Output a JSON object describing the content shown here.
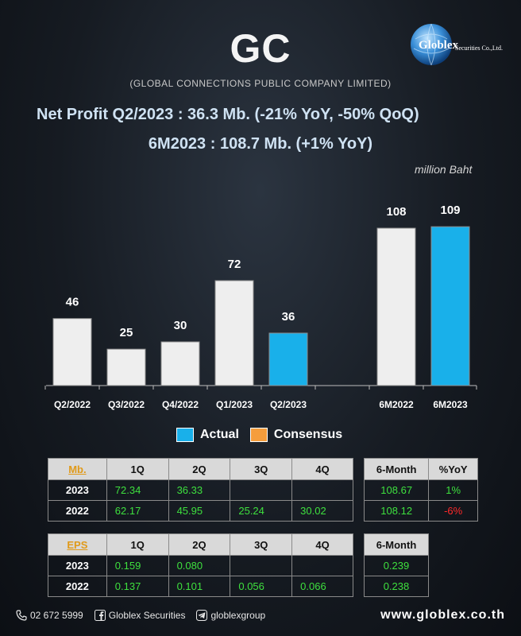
{
  "header": {
    "ticker": "GC",
    "company": "(GLOBAL CONNECTIONS PUBLIC COMPANY LIMITED)",
    "logo_text": "Globlex",
    "logo_sub": "Securities Co.,Ltd.",
    "headline1": "Net Profit  Q2/2023 : 36.3 Mb. (-21% YoY, -50% QoQ)",
    "headline2": "6M2023 : 108.7 Mb. (+1% YoY)",
    "unit": "million Baht"
  },
  "colors": {
    "actual": "#19b0ea",
    "consensus": "#f59d3c",
    "bar_default": "#eeeeee",
    "positive": "#3ee03e",
    "negative": "#ff2a2a"
  },
  "chart_data": {
    "type": "bar",
    "categories": [
      "Q2/2022",
      "Q3/2022",
      "Q4/2022",
      "Q1/2023",
      "Q2/2023",
      "",
      "6M2022",
      "6M2023"
    ],
    "values": [
      46,
      25,
      30,
      72,
      36,
      null,
      108,
      109
    ],
    "labels": [
      "46",
      "25",
      "30",
      "72",
      "36",
      "",
      "108",
      "109"
    ],
    "highlight": [
      false,
      false,
      false,
      false,
      true,
      false,
      false,
      true
    ],
    "ylim": [
      0,
      120
    ],
    "legend": [
      {
        "label": "Actual",
        "color": "#19b0ea"
      },
      {
        "label": "Consensus",
        "color": "#f59d3c"
      }
    ]
  },
  "table_mb": {
    "corner": "Mb.",
    "headers": [
      "1Q",
      "2Q",
      "3Q",
      "4Q"
    ],
    "rows": [
      {
        "year": "2023",
        "values": [
          "72.34",
          "36.33",
          "",
          ""
        ]
      },
      {
        "year": "2022",
        "values": [
          "62.17",
          "45.95",
          "25.24",
          "30.02"
        ]
      }
    ]
  },
  "table_mb_6m": {
    "headers": [
      "6-Month",
      "%YoY"
    ],
    "rows": [
      {
        "values": [
          "108.67",
          "1%"
        ],
        "yoy_sign": "pos"
      },
      {
        "values": [
          "108.12",
          "-6%"
        ],
        "yoy_sign": "neg"
      }
    ]
  },
  "table_eps": {
    "corner": "EPS",
    "headers": [
      "1Q",
      "2Q",
      "3Q",
      "4Q"
    ],
    "rows": [
      {
        "year": "2023",
        "values": [
          "0.159",
          "0.080",
          "",
          ""
        ]
      },
      {
        "year": "2022",
        "values": [
          "0.137",
          "0.101",
          "0.056",
          "0.066"
        ]
      }
    ]
  },
  "table_eps_6m": {
    "headers": [
      "6-Month"
    ],
    "rows": [
      {
        "values": [
          "0.239"
        ]
      },
      {
        "values": [
          "0.238"
        ]
      }
    ]
  },
  "footer": {
    "phone": "02 672 5999",
    "facebook": "Globlex Securities",
    "telegram": "globlexgroup",
    "website": "www.globlex.co.th",
    "icons": [
      "phone-icon",
      "facebook-icon",
      "telegram-icon"
    ]
  }
}
